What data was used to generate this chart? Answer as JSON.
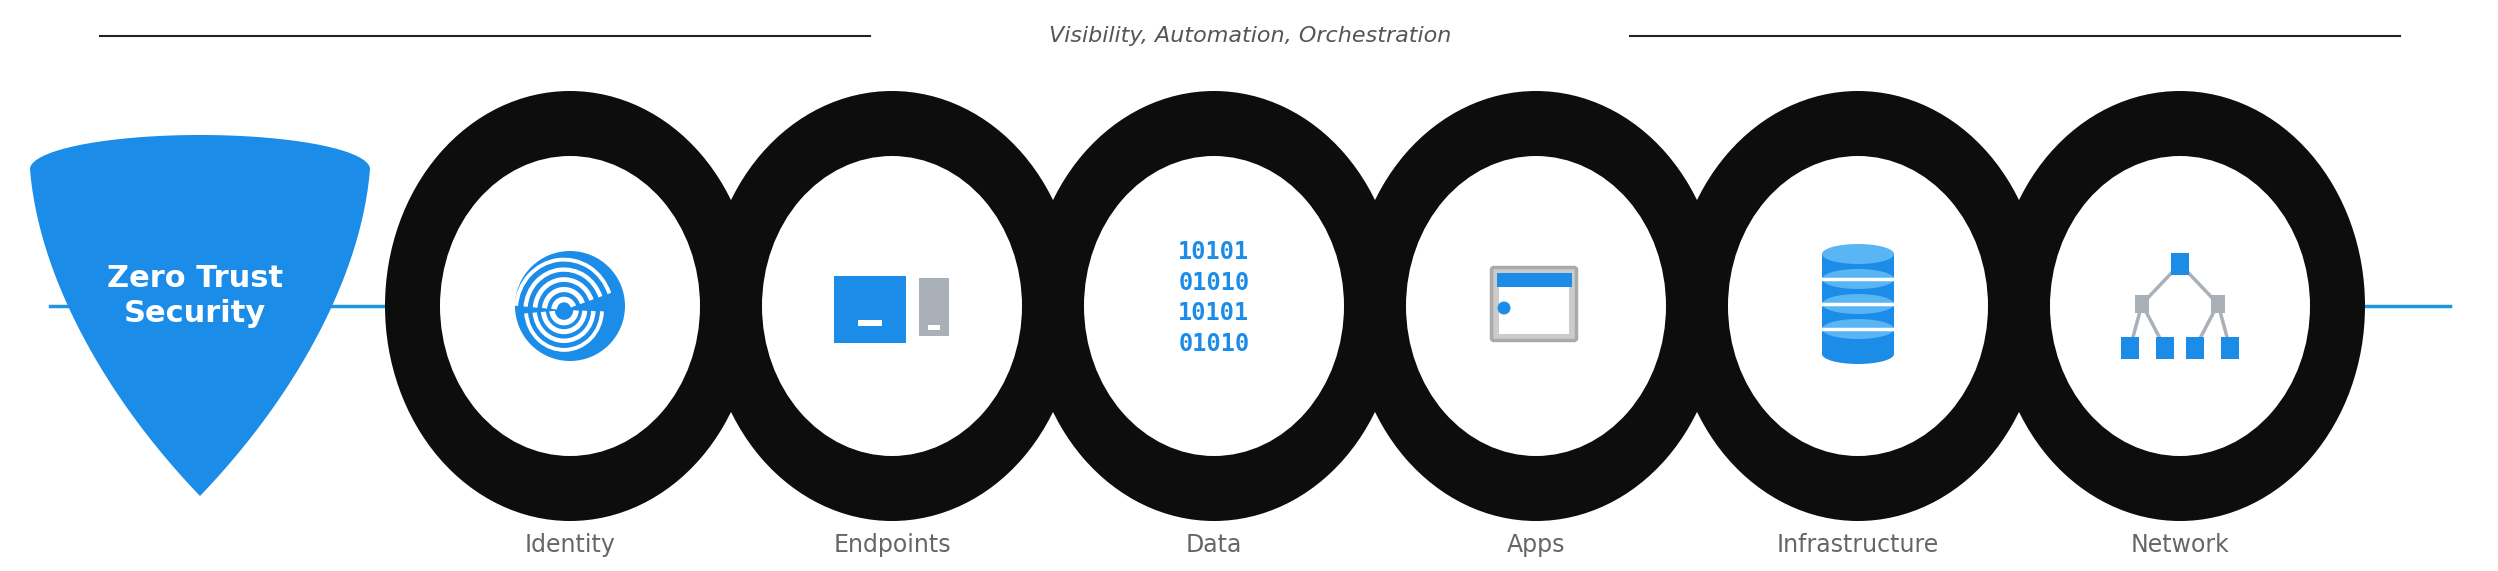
{
  "title": "Visibility, Automation, Orchestration",
  "background_color": "#ffffff",
  "shield_color": "#1b8ce8",
  "shield_text": "Zero Trust\nSecurity",
  "shield_text_color": "#ffffff",
  "circle_outer_color": "#0d0d0d",
  "circle_inner_color": "#ffffff",
  "line_color": "#2196d8",
  "categories": [
    "Identity",
    "Endpoints",
    "Data",
    "Apps",
    "Infrastructure",
    "Network"
  ],
  "category_label_color": "#666666",
  "title_color": "#555555",
  "icon_blue": "#1b8ce8",
  "icon_gray": "#aab0b8",
  "icon_gray_dark": "#888e96"
}
